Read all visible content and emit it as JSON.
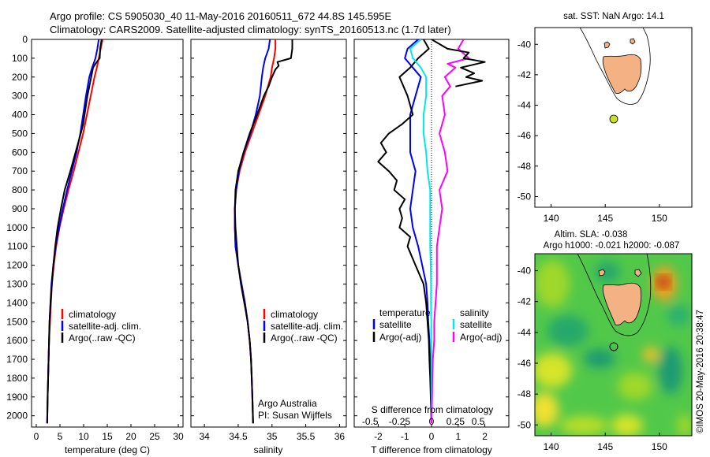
{
  "header": {
    "title_line1": "Argo profile: CS 5905030_40 11-May-2016 20160511_672 44.8S 145.595E",
    "title_line2": "Climatology: CARS2009. Satellite-adjusted climatology: synTS_20160513.nc (1.7d later)"
  },
  "colors": {
    "climatology": "#ff0000",
    "satellite": "#0000ff",
    "argo": "#000000",
    "s_satellite": "#00e8e8",
    "s_argo": "#ff00ff",
    "land": "#f4b183",
    "argo_marker": "#c8e02a"
  },
  "chart_data": [
    {
      "type": "line",
      "panel": "temperature",
      "xlabel": "temperature (deg C)",
      "ylabel": "",
      "xlim": [
        -1,
        31
      ],
      "ylim": [
        2060,
        0
      ],
      "xticks": [
        0,
        5,
        10,
        15,
        20,
        25,
        30
      ],
      "yticks": [
        0,
        100,
        200,
        300,
        400,
        500,
        600,
        700,
        800,
        900,
        1000,
        1100,
        1200,
        1300,
        1400,
        1500,
        1600,
        1700,
        1800,
        1900,
        2000
      ],
      "legend": [
        "climatology",
        "satellite-adj. clim.",
        "Argo(..raw -QC)"
      ],
      "series": [
        {
          "name": "climatology",
          "color": "#ff0000",
          "depth": [
            0,
            50,
            100,
            150,
            200,
            300,
            400,
            500,
            600,
            700,
            800,
            900,
            1000,
            1100,
            1200,
            1300,
            1400,
            1500,
            1600,
            1700,
            1800,
            1900,
            2040
          ],
          "values": [
            14.0,
            13.6,
            13.2,
            12.8,
            12.3,
            11.5,
            10.7,
            9.9,
            8.9,
            7.9,
            6.8,
            5.8,
            4.9,
            4.2,
            3.7,
            3.3,
            3.1,
            2.9,
            2.7,
            2.6,
            2.5,
            2.4,
            2.3
          ]
        },
        {
          "name": "satellite-adj. clim.",
          "color": "#0000ff",
          "depth": [
            0,
            50,
            100,
            150,
            200,
            300,
            400,
            500,
            600,
            700,
            800,
            900,
            1000,
            1100,
            1200,
            1300,
            1400,
            1500,
            1600,
            1700,
            1800,
            1900,
            2040
          ],
          "values": [
            13.2,
            12.9,
            12.5,
            11.8,
            11.2,
            10.5,
            9.9,
            9.3,
            8.5,
            7.5,
            6.5,
            5.6,
            4.8,
            4.1,
            3.6,
            3.2,
            3.0,
            2.8,
            2.7,
            2.6,
            2.5,
            2.4,
            2.3
          ]
        },
        {
          "name": "Argo(..raw -QC)",
          "color": "#000000",
          "depth": [
            0,
            50,
            100,
            130,
            150,
            200,
            300,
            400,
            450,
            500,
            600,
            700,
            800,
            900,
            1000,
            1100,
            1200,
            1300,
            1400,
            1500,
            1600,
            1700,
            1800,
            1900,
            2040
          ],
          "values": [
            13.8,
            13.5,
            13.4,
            12.5,
            12.0,
            11.6,
            10.8,
            10.2,
            9.9,
            9.4,
            8.3,
            7.2,
            6.0,
            5.2,
            4.5,
            4.0,
            3.6,
            3.3,
            3.0,
            2.8,
            2.7,
            2.6,
            2.5,
            2.4,
            2.3
          ]
        }
      ]
    },
    {
      "type": "line",
      "panel": "salinity",
      "xlabel": "salinity",
      "xlim": [
        33.8,
        36.1
      ],
      "ylim": [
        2060,
        0
      ],
      "xticks": [
        34,
        34.5,
        35,
        35.5,
        36
      ],
      "legend": [
        "climatology",
        "satellite-adj. clim.",
        "Argo(..raw -QC)"
      ],
      "annotation": [
        "Argo Australia",
        "PI: Susan Wijffels"
      ],
      "series": [
        {
          "name": "climatology",
          "color": "#ff0000",
          "depth": [
            0,
            50,
            100,
            150,
            200,
            300,
            400,
            500,
            600,
            700,
            800,
            900,
            1000,
            1100,
            1200,
            1300,
            1400,
            1500,
            1600,
            1700,
            1800,
            1900,
            2040
          ],
          "values": [
            35.05,
            35.05,
            35.03,
            35.0,
            34.98,
            34.9,
            34.8,
            34.7,
            34.6,
            34.52,
            34.47,
            34.45,
            34.45,
            34.46,
            34.5,
            34.55,
            34.6,
            34.64,
            34.67,
            34.69,
            34.7,
            34.71,
            34.72
          ]
        },
        {
          "name": "satellite-adj. clim.",
          "color": "#0000ff",
          "depth": [
            0,
            50,
            100,
            150,
            200,
            300,
            400,
            500,
            600,
            700,
            800,
            900,
            1000,
            1100,
            1200,
            1300,
            1400,
            1500,
            1600,
            1700,
            1800,
            1900,
            2040
          ],
          "values": [
            34.97,
            34.95,
            34.9,
            34.87,
            34.85,
            34.82,
            34.76,
            34.68,
            34.58,
            34.51,
            34.47,
            34.45,
            34.45,
            34.46,
            34.5,
            34.55,
            34.6,
            34.64,
            34.67,
            34.69,
            34.7,
            34.71,
            34.72
          ]
        },
        {
          "name": "Argo(..raw -QC)",
          "color": "#000000",
          "depth": [
            0,
            50,
            100,
            120,
            140,
            160,
            200,
            250,
            300,
            400,
            500,
            600,
            700,
            800,
            900,
            1000,
            1100,
            1200,
            1300,
            1400,
            1500,
            1600,
            1700,
            1800,
            1900,
            2040
          ],
          "values": [
            35.3,
            35.3,
            35.28,
            35.08,
            35.1,
            35.05,
            35.0,
            34.95,
            34.88,
            34.78,
            34.67,
            34.58,
            34.5,
            34.46,
            34.45,
            34.46,
            34.48,
            34.5,
            34.54,
            34.59,
            34.64,
            34.67,
            34.69,
            34.7,
            34.71,
            34.72
          ]
        }
      ]
    },
    {
      "type": "line",
      "panel": "difference",
      "xlabel": "T difference from climatology",
      "xlim": [
        -2.9,
        2.9
      ],
      "ylim": [
        2060,
        0
      ],
      "xticks": [
        -2,
        -1,
        0,
        1,
        2
      ],
      "top_xlabel": "S difference from climatology",
      "top_xticks": [
        "-0.5",
        "-0.25",
        "0",
        "0.25",
        "0.5"
      ],
      "top_xtick_values": [
        -2.3,
        -1.2,
        0,
        0.9,
        1.75
      ],
      "legend_titles": [
        "temperature",
        "salinity"
      ],
      "legend": [
        "satellite",
        "Argo(-adj)",
        "satellite",
        "Argo(-adj)"
      ],
      "series": [
        {
          "name": "temperature satellite",
          "color": "#0000ff",
          "depth": [
            0,
            50,
            100,
            150,
            200,
            300,
            400,
            500,
            600,
            700,
            800,
            900,
            1000,
            1100,
            1200,
            1300,
            1400,
            1500,
            1600,
            1700,
            1800,
            1900,
            2040
          ],
          "values": [
            -0.5,
            -0.9,
            -1.0,
            -0.7,
            -0.4,
            -0.6,
            -0.8,
            -0.8,
            -0.8,
            -0.6,
            -0.7,
            -0.8,
            -0.7,
            -0.5,
            -0.35,
            -0.2,
            -0.15,
            -0.12,
            -0.08,
            -0.05,
            -0.03,
            -0.02,
            0.0
          ]
        },
        {
          "name": "temperature Argo(-adj)",
          "color": "#000000",
          "depth": [
            0,
            50,
            100,
            150,
            200,
            300,
            400,
            450,
            500,
            550,
            600,
            650,
            700,
            750,
            800,
            850,
            900,
            950,
            1000,
            1050,
            1100,
            1200,
            1300,
            1400,
            1500,
            1600,
            1700,
            1800,
            1900,
            2040
          ],
          "values": [
            -0.3,
            -0.1,
            -0.5,
            -0.8,
            -1.2,
            -0.9,
            -0.7,
            -1.1,
            -1.6,
            -1.9,
            -1.7,
            -2.0,
            -1.6,
            -1.3,
            -1.4,
            -1.0,
            -1.2,
            -1.1,
            -1.2,
            -0.8,
            -0.9,
            -0.6,
            -0.3,
            -0.2,
            -0.15,
            -0.1,
            -0.08,
            -0.05,
            -0.03,
            0.0
          ]
        },
        {
          "name": "salinity satellite",
          "color": "#00e8e8",
          "depth": [
            0,
            50,
            100,
            150,
            200,
            300,
            400,
            500,
            600,
            700,
            800,
            900,
            1000,
            1100,
            1200,
            1300,
            1400,
            1500,
            1600,
            1700,
            1800,
            1900,
            2040
          ],
          "values": [
            -0.4,
            -0.8,
            -0.7,
            -0.4,
            -0.2,
            -0.2,
            -0.3,
            -0.3,
            -0.2,
            -0.15,
            -0.05,
            -0.05,
            -0.05,
            -0.05,
            -0.03,
            -0.02,
            -0.02,
            -0.01,
            -0.01,
            0.0,
            0.0,
            0.0,
            0.0
          ]
        },
        {
          "name": "salinity Argo(-adj)",
          "color": "#ff00ff",
          "depth": [
            0,
            50,
            100,
            130,
            150,
            200,
            250,
            300,
            400,
            500,
            600,
            700,
            800,
            900,
            1000,
            1100,
            1200,
            1300,
            1400,
            1500,
            1600,
            1700,
            1800,
            1900,
            2040
          ],
          "values": [
            1.2,
            1.0,
            1.4,
            0.6,
            0.9,
            0.5,
            0.7,
            0.4,
            0.5,
            0.3,
            0.5,
            0.6,
            0.3,
            0.4,
            0.3,
            0.2,
            0.2,
            0.2,
            0.15,
            0.1,
            0.1,
            0.05,
            0.03,
            0.02,
            0.0
          ]
        },
        {
          "name": "Argo T (raw) spikes",
          "color": "#000000",
          "depth": [
            0,
            50,
            70,
            100,
            120,
            150,
            180,
            200,
            220,
            250
          ],
          "values": [
            0.0,
            0.6,
            1.4,
            1.2,
            2.0,
            1.1,
            1.6,
            1.3,
            1.9,
            0.9
          ]
        }
      ]
    }
  ],
  "map_sst": {
    "title": "sat. SST: NaN Argo: 14.1",
    "xticks": [
      "140",
      "145",
      "150"
    ],
    "yticks": [
      "-40",
      "-42",
      "-44",
      "-46",
      "-48",
      "-50"
    ]
  },
  "map_sla": {
    "title_line1": "Altim. SLA: -0.038",
    "title_line2": "Argo h1000: -0.021 h2000: -0.087",
    "xticks": [
      "140",
      "145",
      "150"
    ],
    "yticks": [
      "-40",
      "-42",
      "-44",
      "-46",
      "-48",
      "-50"
    ]
  },
  "watermark": "©IMOS 20-May-2016 20:38:47",
  "depth_ticks": [
    "0",
    "100",
    "200",
    "300",
    "400",
    "500",
    "600",
    "700",
    "800",
    "900",
    "1000",
    "1100",
    "1200",
    "1300",
    "1400",
    "1500",
    "1600",
    "1700",
    "1800",
    "1900",
    "2000"
  ],
  "temp_ticks": [
    "0",
    "5",
    "10",
    "15",
    "20",
    "25",
    "30"
  ],
  "sal_ticks": [
    "34",
    "34.5",
    "35",
    "35.5",
    "36"
  ],
  "diff_ticks": [
    "-2",
    "-1",
    "0",
    "1",
    "2"
  ]
}
